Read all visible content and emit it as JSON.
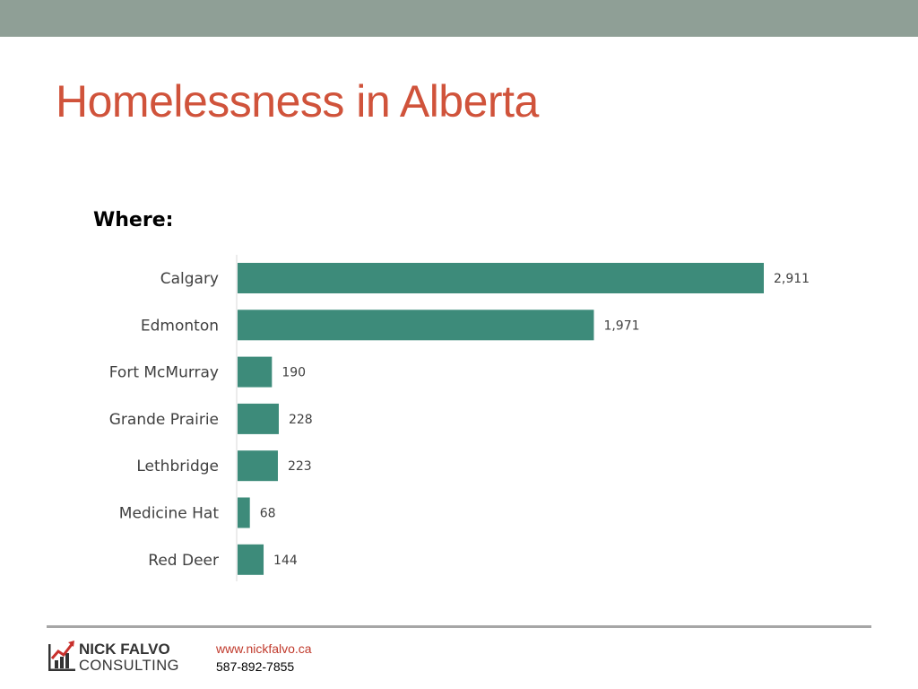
{
  "slide": {
    "title": "Homelessness in Alberta",
    "subtitle": "Where:"
  },
  "chart_data": {
    "type": "bar",
    "orientation": "horizontal",
    "categories": [
      "Calgary",
      "Edmonton",
      "Fort McMurray",
      "Grande Prairie",
      "Lethbridge",
      "Medicine Hat",
      "Red Deer"
    ],
    "values": [
      2911,
      1971,
      190,
      228,
      223,
      68,
      144
    ],
    "data_labels": [
      "2,911",
      "1,971",
      "190",
      "228",
      "223",
      "68",
      "144"
    ],
    "title": "",
    "xlabel": "",
    "ylabel": "",
    "xlim": [
      0,
      2911
    ],
    "grid": false,
    "legend": "none"
  },
  "footer": {
    "logo_line1": "NICK FALVO",
    "logo_line2": "CONSULTING",
    "website": "www.nickfalvo.ca",
    "phone": "587-892-7855"
  },
  "colors": {
    "top_bar": "#8f9f96",
    "title": "#d0533b",
    "bar": "#3d8b7a",
    "axis_text": "#404040",
    "link": "#c0392b",
    "logo_dark": "#333333",
    "logo_accent": "#c8302c"
  }
}
